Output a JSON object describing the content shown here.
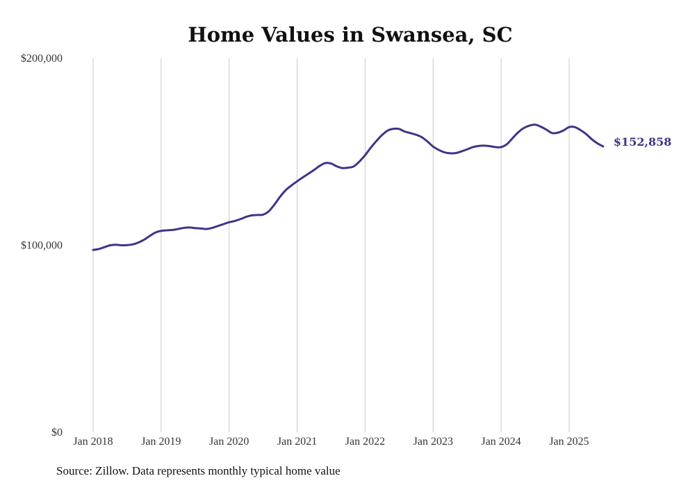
{
  "chart_data": {
    "type": "line",
    "title": "Home Values in Swansea, SC",
    "xlabel": "",
    "ylabel": "",
    "ylim": [
      0,
      200000
    ],
    "y_ticks": [
      {
        "value": 0,
        "label": "$0"
      },
      {
        "value": 100000,
        "label": "$100,000"
      },
      {
        "value": 200000,
        "label": "$200,000"
      }
    ],
    "x_ticks": [
      {
        "date": "2018-01",
        "label": "Jan 2018"
      },
      {
        "date": "2019-01",
        "label": "Jan 2019"
      },
      {
        "date": "2020-01",
        "label": "Jan 2020"
      },
      {
        "date": "2021-01",
        "label": "Jan 2021"
      },
      {
        "date": "2022-01",
        "label": "Jan 2022"
      },
      {
        "date": "2023-01",
        "label": "Jan 2023"
      },
      {
        "date": "2024-01",
        "label": "Jan 2024"
      },
      {
        "date": "2025-01",
        "label": "Jan 2025"
      }
    ],
    "grid": "vertical",
    "series": [
      {
        "color": "#3d3489",
        "end_label": "$152,858",
        "points": [
          [
            "2018-01",
            97500
          ],
          [
            "2018-02",
            98000
          ],
          [
            "2018-03",
            99000
          ],
          [
            "2018-04",
            100000
          ],
          [
            "2018-05",
            100300
          ],
          [
            "2018-06",
            100000
          ],
          [
            "2018-07",
            100100
          ],
          [
            "2018-08",
            100500
          ],
          [
            "2018-09",
            101500
          ],
          [
            "2018-10",
            103000
          ],
          [
            "2018-11",
            105000
          ],
          [
            "2018-12",
            106800
          ],
          [
            "2019-01",
            107700
          ],
          [
            "2019-02",
            108000
          ],
          [
            "2019-03",
            108200
          ],
          [
            "2019-04",
            108700
          ],
          [
            "2019-05",
            109300
          ],
          [
            "2019-06",
            109500
          ],
          [
            "2019-07",
            109200
          ],
          [
            "2019-08",
            109000
          ],
          [
            "2019-09",
            108700
          ],
          [
            "2019-10",
            109300
          ],
          [
            "2019-11",
            110300
          ],
          [
            "2019-12",
            111300
          ],
          [
            "2020-01",
            112300
          ],
          [
            "2020-02",
            113000
          ],
          [
            "2020-03",
            114000
          ],
          [
            "2020-04",
            115200
          ],
          [
            "2020-05",
            116000
          ],
          [
            "2020-06",
            116200
          ],
          [
            "2020-07",
            116400
          ],
          [
            "2020-08",
            118200
          ],
          [
            "2020-09",
            121800
          ],
          [
            "2020-10",
            126000
          ],
          [
            "2020-11",
            129500
          ],
          [
            "2020-12",
            132000
          ],
          [
            "2021-01",
            134200
          ],
          [
            "2021-02",
            136300
          ],
          [
            "2021-03",
            138300
          ],
          [
            "2021-04",
            140300
          ],
          [
            "2021-05",
            142500
          ],
          [
            "2021-06",
            144000
          ],
          [
            "2021-07",
            143700
          ],
          [
            "2021-08",
            142200
          ],
          [
            "2021-09",
            141300
          ],
          [
            "2021-10",
            141500
          ],
          [
            "2021-11",
            142200
          ],
          [
            "2021-12",
            144800
          ],
          [
            "2022-01",
            148200
          ],
          [
            "2022-02",
            152200
          ],
          [
            "2022-03",
            155800
          ],
          [
            "2022-04",
            159000
          ],
          [
            "2022-05",
            161400
          ],
          [
            "2022-06",
            162300
          ],
          [
            "2022-07",
            162200
          ],
          [
            "2022-08",
            160800
          ],
          [
            "2022-09",
            160000
          ],
          [
            "2022-10",
            159100
          ],
          [
            "2022-11",
            157800
          ],
          [
            "2022-12",
            155500
          ],
          [
            "2023-01",
            152800
          ],
          [
            "2023-02",
            151000
          ],
          [
            "2023-03",
            149700
          ],
          [
            "2023-04",
            149200
          ],
          [
            "2023-05",
            149300
          ],
          [
            "2023-06",
            150200
          ],
          [
            "2023-07",
            151300
          ],
          [
            "2023-08",
            152500
          ],
          [
            "2023-09",
            153100
          ],
          [
            "2023-10",
            153300
          ],
          [
            "2023-11",
            153000
          ],
          [
            "2023-12",
            152500
          ],
          [
            "2024-01",
            152500
          ],
          [
            "2024-02",
            154000
          ],
          [
            "2024-03",
            157200
          ],
          [
            "2024-04",
            160400
          ],
          [
            "2024-05",
            162700
          ],
          [
            "2024-06",
            164000
          ],
          [
            "2024-07",
            164500
          ],
          [
            "2024-08",
            163400
          ],
          [
            "2024-09",
            161800
          ],
          [
            "2024-10",
            160000
          ],
          [
            "2024-11",
            160200
          ],
          [
            "2024-12",
            161400
          ],
          [
            "2025-01",
            163200
          ],
          [
            "2025-02",
            163200
          ],
          [
            "2025-03",
            161600
          ],
          [
            "2025-04",
            159500
          ],
          [
            "2025-05",
            156700
          ],
          [
            "2025-06",
            154500
          ],
          [
            "2025-07",
            152858
          ]
        ]
      }
    ],
    "source_note": "Source: Zillow. Data represents monthly typical home value"
  }
}
